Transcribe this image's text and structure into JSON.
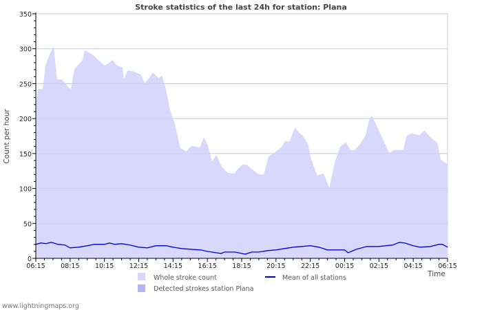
{
  "chart_data": {
    "type": "area",
    "title": "Stroke statistics of the last 24h for station: Plana",
    "xlabel": "Time",
    "ylabel": "Count per hour",
    "ylim": [
      0,
      350
    ],
    "yticks": [
      "0",
      "50",
      "100",
      "150",
      "200",
      "250",
      "300",
      "350"
    ],
    "xticks": [
      "06:15",
      "08:15",
      "10:15",
      "12:15",
      "14:15",
      "16:15",
      "18:15",
      "20:15",
      "22:15",
      "00:15",
      "02:15",
      "04:15",
      "06:15"
    ],
    "x_unit": "hours since 06:15",
    "xlim": [
      0,
      24
    ],
    "grid": true,
    "legend_placement": "bottom",
    "series": [
      {
        "name": "Whole stroke count",
        "kind": "area",
        "color": "#d8d8fc",
        "x": [
          0,
          0.12,
          0.4,
          0.56,
          0.8,
          1.04,
          1.24,
          1.53,
          1.93,
          2.05,
          2.25,
          2.73,
          2.85,
          3.33,
          3.86,
          4.02,
          4.34,
          4.46,
          4.74,
          5.06,
          5.14,
          5.34,
          5.66,
          5.94,
          6.14,
          6.35,
          6.83,
          7.15,
          7.35,
          7.55,
          7.83,
          8.07,
          8.43,
          8.76,
          9.08,
          9.56,
          9.8,
          10.04,
          10.28,
          10.52,
          10.84,
          11.16,
          11.57,
          11.77,
          12.05,
          12.29,
          12.57,
          13.01,
          13.29,
          13.57,
          13.9,
          14.3,
          14.54,
          14.78,
          15.1,
          15.34,
          15.58,
          15.86,
          16.06,
          16.39,
          16.79,
          17.11,
          17.43,
          17.75,
          18.07,
          18.35,
          18.59,
          18.88,
          19.2,
          19.44,
          19.6,
          19.92,
          20.2,
          20.6,
          20.88,
          21.41,
          21.61,
          21.89,
          22.33,
          22.65,
          23.01,
          23.41,
          23.61,
          23.92,
          24
        ],
        "values": [
          222,
          242,
          242,
          276,
          291,
          303,
          256,
          256,
          244,
          242,
          271,
          284,
          298,
          291,
          279,
          276,
          281,
          284,
          276,
          273,
          256,
          269,
          268,
          265,
          263,
          250,
          266,
          258,
          261,
          246,
          212,
          195,
          158,
          153,
          161,
          159,
          173,
          161,
          138,
          148,
          131,
          123,
          121,
          128,
          134,
          134,
          128,
          120,
          120,
          146,
          151,
          159,
          168,
          167,
          187,
          180,
          175,
          163,
          141,
          119,
          121,
          101,
          138,
          160,
          166,
          155,
          155,
          163,
          175,
          200,
          204,
          187,
          172,
          151,
          155,
          155,
          175,
          179,
          176,
          183,
          173,
          165,
          141,
          136,
          136
        ]
      },
      {
        "name": "Detected strokes station Plana",
        "kind": "area",
        "color": "#b4b4f8",
        "x": [],
        "values": []
      },
      {
        "name": "Mean of all stations",
        "kind": "line",
        "color": "#0000dd",
        "x": [
          0,
          0.3,
          0.6,
          0.9,
          1.3,
          1.7,
          2.0,
          2.5,
          3.0,
          3.4,
          4.0,
          4.3,
          4.6,
          5.0,
          5.5,
          6.0,
          6.5,
          7.0,
          7.6,
          8.0,
          8.5,
          9.0,
          9.6,
          10.0,
          10.5,
          10.8,
          11.0,
          11.6,
          12.0,
          12.2,
          12.6,
          13.0,
          13.5,
          14.0,
          14.5,
          15.0,
          15.5,
          16.0,
          16.5,
          17.0,
          17.5,
          18.0,
          18.2,
          18.7,
          19.3,
          20.0,
          20.4,
          20.8,
          21.2,
          21.5,
          22.0,
          22.4,
          23.0,
          23.5,
          23.7,
          24
        ],
        "values": [
          20,
          22,
          21,
          23,
          20,
          19,
          15,
          16,
          18,
          20,
          20,
          22,
          20,
          21,
          19,
          16,
          15,
          18,
          18,
          16,
          14,
          13,
          12,
          10,
          8,
          7,
          9,
          9,
          7,
          6,
          9,
          9,
          11,
          12,
          14,
          16,
          17,
          18,
          16,
          12,
          12,
          12,
          8,
          13,
          17,
          17,
          18,
          19,
          23,
          22,
          18,
          16,
          17,
          20,
          20,
          16
        ]
      }
    ]
  },
  "footer": "www.lightningmaps.org"
}
